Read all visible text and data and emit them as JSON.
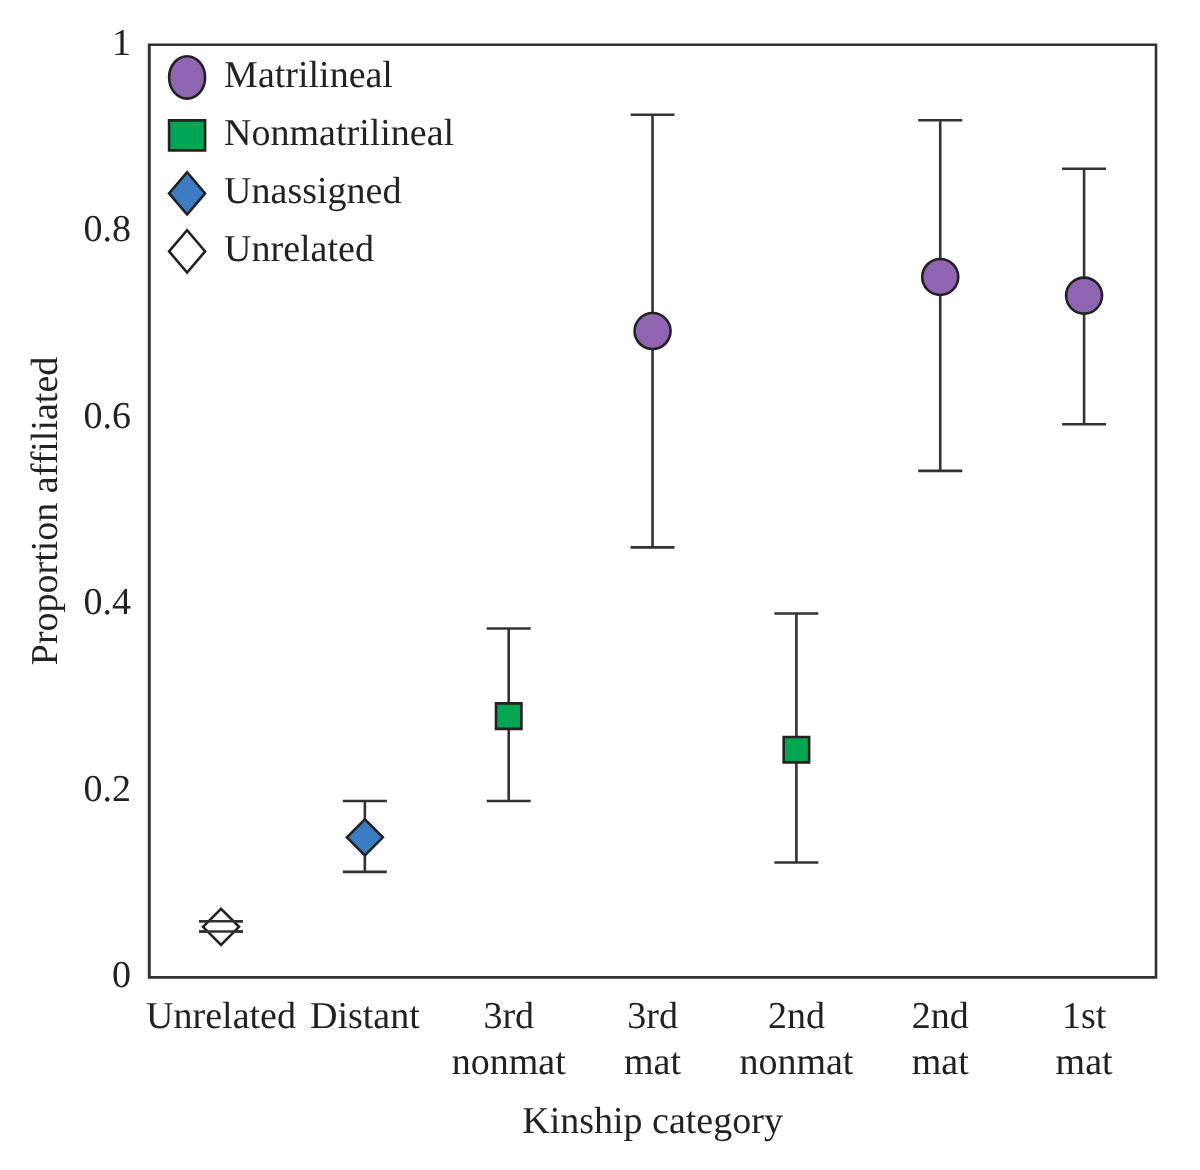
{
  "chart_data": {
    "type": "scatter",
    "xlabel": "Kinship category",
    "ylabel": "Proportion affiliated",
    "categories": [
      "Unrelated",
      "Distant",
      "3rd nonmat",
      "3rd mat",
      "2nd nonmat",
      "2nd mat",
      "1st mat"
    ],
    "ylim": [
      0,
      1
    ],
    "yticks": [
      0,
      0.2,
      0.4,
      0.6,
      0.8,
      1
    ],
    "grid": false,
    "legend": "top left",
    "series": [
      {
        "name": "Matrilineal",
        "color": "#8f64b1",
        "marker": "circle",
        "values": [
          null,
          null,
          null,
          0.693,
          null,
          0.751,
          0.731
        ],
        "errors": [
          null,
          null,
          null,
          [
            0.461,
            0.925
          ],
          null,
          [
            0.543,
            0.919
          ],
          [
            0.593,
            0.867
          ]
        ]
      },
      {
        "name": "Nonmatrilineal",
        "color": "#00a651",
        "marker": "square",
        "values": [
          null,
          null,
          0.28,
          null,
          0.244,
          null,
          null
        ],
        "errors": [
          null,
          null,
          [
            0.189,
            0.374
          ],
          null,
          [
            0.123,
            0.39
          ],
          null,
          null
        ]
      },
      {
        "name": "Unassigned",
        "color": "#3b7cc2",
        "marker": "diamond",
        "values": [
          null,
          0.15,
          null,
          null,
          null,
          null,
          null
        ],
        "errors": [
          null,
          [
            0.113,
            0.189
          ],
          null,
          null,
          null,
          null,
          null
        ]
      },
      {
        "name": "Unrelated",
        "color": "#ffffff",
        "marker": "diamond",
        "values": [
          0.054,
          null,
          null,
          null,
          null,
          null,
          null
        ],
        "errors": [
          [
            0.049,
            0.06
          ],
          null,
          null,
          null,
          null,
          null,
          null
        ]
      }
    ]
  }
}
